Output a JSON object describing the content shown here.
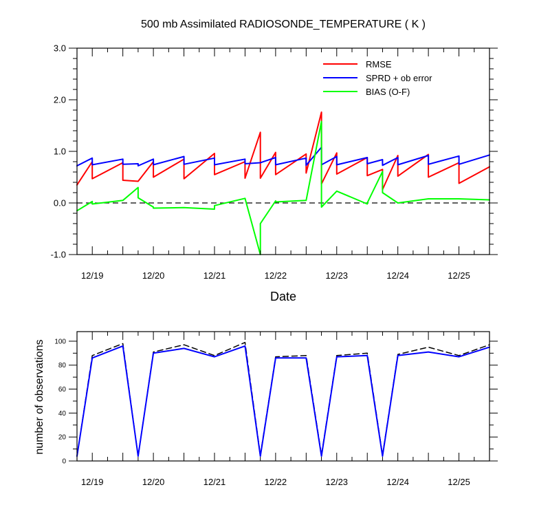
{
  "chart_data": [
    {
      "type": "line",
      "title": "500 mb Assimilated RADIOSONDE_TEMPERATURE ( K )",
      "xlabel": "Date",
      "ylabel": "",
      "xlim": [
        -0.25,
        6.5
      ],
      "ylim": [
        -1.0,
        3.0
      ],
      "yticks": [
        -1.0,
        0.0,
        1.0,
        2.0,
        3.0
      ],
      "ytick_labels": [
        "-1.0",
        "0.0",
        "1.0",
        "2.0",
        "3.0"
      ],
      "xticks": [
        0,
        1,
        2,
        3,
        4,
        5,
        6
      ],
      "xtick_labels": [
        "12/19",
        "12/20",
        "12/21",
        "12/22",
        "12/23",
        "12/24",
        "12/25"
      ],
      "legend": {
        "placement": "top-right"
      },
      "zero_line": {
        "value": 0.0,
        "style": "dashed",
        "color": "#000000"
      },
      "series": [
        {
          "name": "RMSE",
          "color": "#ff0000",
          "points": [
            [
              -0.25,
              0.35
            ],
            [
              0.0,
              0.8
            ],
            [
              0.0,
              0.47
            ],
            [
              0.5,
              0.78
            ],
            [
              0.5,
              0.44
            ],
            [
              0.75,
              0.42
            ],
            [
              1.0,
              0.8
            ],
            [
              1.0,
              0.5
            ],
            [
              1.5,
              0.85
            ],
            [
              1.5,
              0.47
            ],
            [
              2.0,
              0.96
            ],
            [
              2.0,
              0.55
            ],
            [
              2.5,
              0.8
            ],
            [
              2.5,
              0.48
            ],
            [
              2.75,
              1.37
            ],
            [
              2.75,
              0.48
            ],
            [
              3.0,
              0.98
            ],
            [
              3.0,
              0.55
            ],
            [
              3.5,
              0.95
            ],
            [
              3.5,
              0.58
            ],
            [
              3.75,
              1.76
            ],
            [
              3.75,
              0.37
            ],
            [
              4.0,
              0.97
            ],
            [
              4.0,
              0.56
            ],
            [
              4.5,
              0.88
            ],
            [
              4.5,
              0.53
            ],
            [
              4.75,
              0.65
            ],
            [
              4.75,
              0.26
            ],
            [
              5.0,
              0.92
            ],
            [
              5.0,
              0.52
            ],
            [
              5.5,
              0.94
            ],
            [
              5.5,
              0.5
            ],
            [
              6.0,
              0.78
            ],
            [
              6.0,
              0.38
            ],
            [
              6.5,
              0.7
            ]
          ]
        },
        {
          "name": "SPRD + ob error",
          "color": "#0000ff",
          "points": [
            [
              -0.25,
              0.72
            ],
            [
              0.0,
              0.87
            ],
            [
              0.0,
              0.74
            ],
            [
              0.5,
              0.85
            ],
            [
              0.5,
              0.75
            ],
            [
              0.75,
              0.76
            ],
            [
              0.75,
              0.72
            ],
            [
              1.0,
              0.85
            ],
            [
              1.0,
              0.74
            ],
            [
              1.5,
              0.9
            ],
            [
              1.5,
              0.75
            ],
            [
              2.0,
              0.87
            ],
            [
              2.0,
              0.74
            ],
            [
              2.5,
              0.85
            ],
            [
              2.5,
              0.76
            ],
            [
              2.75,
              0.78
            ],
            [
              3.0,
              0.88
            ],
            [
              3.0,
              0.74
            ],
            [
              3.5,
              0.87
            ],
            [
              3.5,
              0.73
            ],
            [
              3.75,
              1.08
            ],
            [
              3.75,
              0.74
            ],
            [
              4.0,
              0.9
            ],
            [
              4.0,
              0.74
            ],
            [
              4.5,
              0.88
            ],
            [
              4.5,
              0.76
            ],
            [
              4.75,
              0.84
            ],
            [
              4.75,
              0.73
            ],
            [
              5.0,
              0.88
            ],
            [
              5.0,
              0.74
            ],
            [
              5.5,
              0.92
            ],
            [
              5.5,
              0.75
            ],
            [
              6.0,
              0.91
            ],
            [
              6.0,
              0.75
            ],
            [
              6.5,
              0.93
            ]
          ]
        },
        {
          "name": "BIAS (O-F)",
          "color": "#00ff00",
          "points": [
            [
              -0.25,
              -0.15
            ],
            [
              0.0,
              0.03
            ],
            [
              0.0,
              -0.02
            ],
            [
              0.5,
              0.05
            ],
            [
              0.75,
              0.3
            ],
            [
              0.75,
              0.1
            ],
            [
              1.0,
              -0.08
            ],
            [
              1.0,
              -0.1
            ],
            [
              1.5,
              -0.09
            ],
            [
              2.0,
              -0.12
            ],
            [
              2.0,
              -0.05
            ],
            [
              2.5,
              0.09
            ],
            [
              2.75,
              -1.0
            ],
            [
              2.75,
              -0.4
            ],
            [
              3.0,
              0.04
            ],
            [
              3.0,
              0.02
            ],
            [
              3.5,
              0.05
            ],
            [
              3.75,
              1.58
            ],
            [
              3.75,
              -0.08
            ],
            [
              4.0,
              0.23
            ],
            [
              4.5,
              -0.02
            ],
            [
              4.5,
              0.0
            ],
            [
              4.75,
              0.61
            ],
            [
              4.75,
              0.2
            ],
            [
              5.0,
              0.0
            ],
            [
              5.5,
              0.08
            ],
            [
              6.0,
              0.08
            ],
            [
              6.5,
              0.06
            ]
          ]
        }
      ]
    },
    {
      "type": "line",
      "title": "",
      "xlabel": "",
      "ylabel": "number of observations",
      "xlim": [
        -0.25,
        6.5
      ],
      "ylim": [
        0,
        108
      ],
      "yticks": [
        0,
        20,
        40,
        60,
        80,
        100
      ],
      "ytick_labels": [
        "0",
        "20",
        "40",
        "60",
        "80",
        "100"
      ],
      "xticks": [
        0,
        1,
        2,
        3,
        4,
        5,
        6
      ],
      "xtick_labels": [
        "12/19",
        "12/20",
        "12/21",
        "12/22",
        "12/23",
        "12/24",
        "12/25"
      ],
      "series": [
        {
          "color": "#000000",
          "dashed": true,
          "x": [
            -0.25,
            0.0,
            0.5,
            0.75,
            1.0,
            1.5,
            2.0,
            2.5,
            2.75,
            3.0,
            3.5,
            3.75,
            4.0,
            4.5,
            4.75,
            5.0,
            5.5,
            6.0,
            6.5
          ],
          "values": [
            4,
            88,
            98,
            4,
            91,
            97,
            88,
            99,
            5,
            87,
            88,
            5,
            88,
            90,
            5,
            89,
            95,
            88,
            97
          ]
        },
        {
          "color": "#0000ff",
          "dashed": false,
          "x": [
            -0.25,
            0.0,
            0.5,
            0.75,
            1.0,
            1.5,
            2.0,
            2.5,
            2.75,
            3.0,
            3.5,
            3.75,
            4.0,
            4.5,
            4.75,
            5.0,
            5.5,
            6.0,
            6.5
          ],
          "values": [
            4,
            86,
            96,
            4,
            90,
            94,
            87,
            96,
            4,
            86,
            86,
            4,
            87,
            88,
            4,
            88,
            91,
            87,
            95
          ]
        }
      ]
    }
  ]
}
